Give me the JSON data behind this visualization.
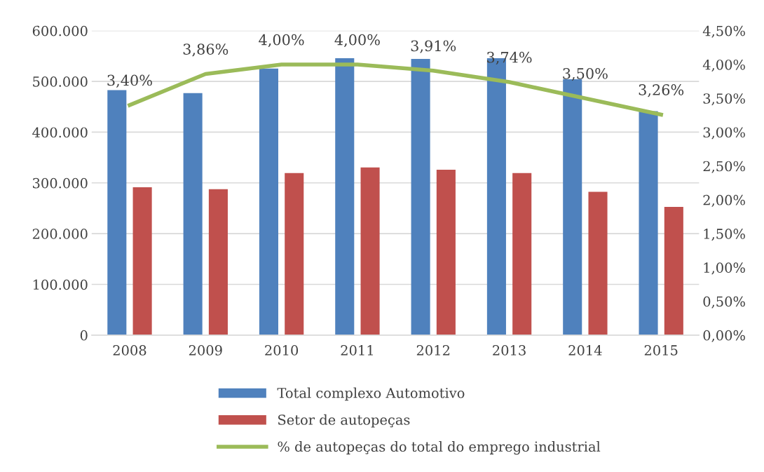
{
  "chart_data": {
    "type": "bar",
    "categories": [
      "2008",
      "2009",
      "2010",
      "2011",
      "2012",
      "2013",
      "2014",
      "2015"
    ],
    "series": [
      {
        "name": "Total complexo Automotivo",
        "color": "#4f81bd",
        "values": [
          483000,
          477000,
          525500,
          545700,
          544300,
          545700,
          504200,
          441400
        ]
      },
      {
        "name": "Setor de autopeças",
        "color": "#c0504d",
        "values": [
          291400,
          287700,
          319500,
          330600,
          326000,
          319500,
          282600,
          252600
        ]
      },
      {
        "name": "% de autopeças do total do emprego industrial",
        "type": "line",
        "axis": "y2",
        "color": "#9bbb59",
        "values": [
          3.4,
          3.86,
          4.0,
          4.0,
          3.91,
          3.74,
          3.5,
          3.26
        ],
        "value_labels": [
          "3,40%",
          "3,86%",
          "4,00%",
          "4,00%",
          "3,91%",
          "3,74%",
          "3,50%",
          "3,26%"
        ]
      }
    ],
    "ylim": [
      0,
      600000
    ],
    "yticks": [
      {
        "value": 0,
        "label": "0"
      },
      {
        "value": 100000,
        "label": "100.000"
      },
      {
        "value": 200000,
        "label": "200.000"
      },
      {
        "value": 300000,
        "label": "300.000"
      },
      {
        "value": 400000,
        "label": "400.000"
      },
      {
        "value": 500000,
        "label": "500.000"
      },
      {
        "value": 600000,
        "label": "600.000"
      }
    ],
    "y2lim": [
      0,
      4.5
    ],
    "y2ticks": [
      {
        "value": 0,
        "label": "0,00%"
      },
      {
        "value": 0.5,
        "label": "0,50%"
      },
      {
        "value": 1.0,
        "label": "1,00%"
      },
      {
        "value": 1.5,
        "label": "1,50%"
      },
      {
        "value": 2.0,
        "label": "2,00%"
      },
      {
        "value": 2.5,
        "label": "2,50%"
      },
      {
        "value": 3.0,
        "label": "3,00%"
      },
      {
        "value": 3.5,
        "label": "3,50%"
      },
      {
        "value": 4.0,
        "label": "4,00%"
      },
      {
        "value": 4.5,
        "label": "4,50%"
      }
    ],
    "grid": "y",
    "legend": "bottom",
    "line_style": "solid",
    "marker": "none"
  }
}
